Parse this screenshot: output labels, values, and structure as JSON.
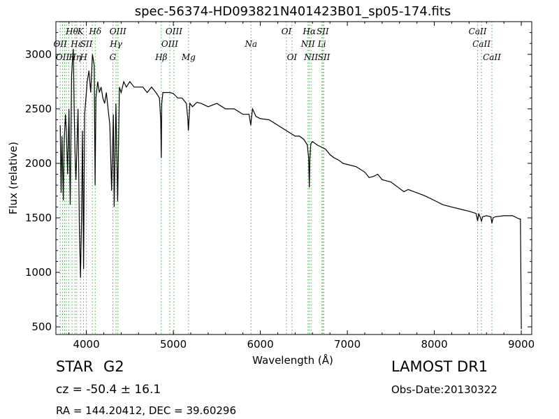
{
  "chart_data": {
    "type": "line",
    "title": "spec-56374-HD093821N401423B01_sp05-174.fits",
    "xlabel": "Wavelength (Å)",
    "ylabel": "Flux (relative)",
    "xlim": [
      3650,
      9120
    ],
    "ylim": [
      430,
      3300
    ],
    "xticks": [
      4000,
      5000,
      6000,
      7000,
      8000,
      9000
    ],
    "yticks": [
      500,
      1000,
      1500,
      2000,
      2500,
      3000
    ],
    "grid": false,
    "legend": "none",
    "series_color": "#000000",
    "line_color": "#44aa44",
    "x": [
      3700,
      3710,
      3720,
      3735,
      3745,
      3760,
      3770,
      3785,
      3800,
      3815,
      3830,
      3840,
      3850,
      3860,
      3870,
      3880,
      3890,
      3905,
      3920,
      3933,
      3945,
      3955,
      3968,
      3980,
      3995,
      4010,
      4030,
      4050,
      4070,
      4090,
      4101,
      4110,
      4130,
      4150,
      4170,
      4190,
      4210,
      4230,
      4250,
      4270,
      4290,
      4310,
      4320,
      4340,
      4360,
      4380,
      4400,
      4430,
      4460,
      4500,
      4550,
      4600,
      4650,
      4700,
      4750,
      4800,
      4840,
      4855,
      4861,
      4867,
      4880,
      4920,
      4960,
      5000,
      5050,
      5100,
      5150,
      5167,
      5172,
      5175,
      5183,
      5190,
      5220,
      5270,
      5320,
      5400,
      5500,
      5600,
      5700,
      5800,
      5870,
      5890,
      5896,
      5910,
      5950,
      6000,
      6100,
      6200,
      6300,
      6400,
      6450,
      6500,
      6540,
      6555,
      6563,
      6570,
      6580,
      6600,
      6650,
      6700,
      6750,
      6800,
      6850,
      6900,
      6950,
      7000,
      7100,
      7200,
      7250,
      7300,
      7350,
      7400,
      7500,
      7600,
      7650,
      7700,
      7800,
      7900,
      8000,
      8100,
      8200,
      8300,
      8400,
      8480,
      8498,
      8510,
      8530,
      8542,
      8555,
      8600,
      8650,
      8662,
      8675,
      8700,
      8800,
      8900,
      8950,
      8980,
      8990,
      9000
    ],
    "values": [
      2350,
      1730,
      2250,
      1660,
      2200,
      2450,
      2300,
      1900,
      2500,
      1620,
      2800,
      2950,
      3050,
      2500,
      2100,
      1850,
      2100,
      2500,
      1400,
      950,
      1500,
      2300,
      1030,
      2450,
      2600,
      2750,
      2850,
      2650,
      3000,
      2900,
      1800,
      2600,
      2750,
      2650,
      2700,
      2600,
      2550,
      2650,
      2500,
      2350,
      1750,
      2450,
      1600,
      2550,
      1650,
      2700,
      2650,
      2750,
      2700,
      2750,
      2700,
      2700,
      2700,
      2650,
      2700,
      2650,
      2600,
      2400,
      2050,
      2550,
      2650,
      2650,
      2650,
      2640,
      2600,
      2600,
      2550,
      2400,
      2300,
      2330,
      2450,
      2550,
      2520,
      2560,
      2550,
      2520,
      2550,
      2500,
      2500,
      2450,
      2450,
      2350,
      2400,
      2500,
      2430,
      2410,
      2400,
      2350,
      2300,
      2250,
      2250,
      2220,
      2170,
      2050,
      1780,
      2050,
      2180,
      2200,
      2170,
      2150,
      2130,
      2080,
      2050,
      2030,
      2000,
      1990,
      1970,
      1920,
      1870,
      1880,
      1900,
      1850,
      1830,
      1770,
      1740,
      1760,
      1730,
      1700,
      1660,
      1620,
      1600,
      1580,
      1560,
      1540,
      1470,
      1540,
      1500,
      1470,
      1510,
      1520,
      1510,
      1450,
      1500,
      1510,
      1520,
      1520,
      1500,
      1490,
      1490,
      480
    ],
    "lines": [
      {
        "x": 3700,
        "label": "OII",
        "row": 2
      },
      {
        "x": 3727,
        "label": "OII",
        "row": 3
      },
      {
        "x": 3750,
        "label": "",
        "row": 0
      },
      {
        "x": 3771,
        "label": "",
        "row": 0
      },
      {
        "x": 3798,
        "label": "",
        "row": 0
      },
      {
        "x": 3835,
        "label": "Hθ",
        "row": 1
      },
      {
        "x": 3869,
        "label": "Hη",
        "row": 3
      },
      {
        "x": 3889,
        "label": "Hε",
        "row": 2
      },
      {
        "x": 3933,
        "label": "K",
        "row": 1
      },
      {
        "x": 3968,
        "label": "H",
        "row": 3
      },
      {
        "x": 4000,
        "label": "SII",
        "row": 2
      },
      {
        "x": 4069,
        "label": "",
        "row": 0
      },
      {
        "x": 4102,
        "label": "Hδ",
        "row": 1
      },
      {
        "x": 4304,
        "label": "G",
        "row": 3
      },
      {
        "x": 4341,
        "label": "Hγ",
        "row": 2
      },
      {
        "x": 4363,
        "label": "OIII",
        "row": 1
      },
      {
        "x": 4861,
        "label": "Hβ",
        "row": 3
      },
      {
        "x": 4959,
        "label": "OIII",
        "row": 2
      },
      {
        "x": 5007,
        "label": "OIII",
        "row": 1
      },
      {
        "x": 5175,
        "label": "Mg",
        "row": 3
      },
      {
        "x": 5893,
        "label": "Na",
        "row": 2
      },
      {
        "x": 6300,
        "label": "OI",
        "row": 1
      },
      {
        "x": 6364,
        "label": "OI",
        "row": 3
      },
      {
        "x": 6548,
        "label": "NII",
        "row": 2
      },
      {
        "x": 6563,
        "label": "Hα",
        "row": 1
      },
      {
        "x": 6583,
        "label": "NII",
        "row": 3
      },
      {
        "x": 6708,
        "label": "Li",
        "row": 2
      },
      {
        "x": 6717,
        "label": "SII",
        "row": 1
      },
      {
        "x": 6731,
        "label": "SII",
        "row": 3
      },
      {
        "x": 8498,
        "label": "CaII",
        "row": 1
      },
      {
        "x": 8542,
        "label": "CaII",
        "row": 2
      },
      {
        "x": 8662,
        "label": "CaII",
        "row": 3
      }
    ]
  },
  "info": {
    "object_class": "STAR",
    "object_subclass": "G2",
    "cz": "cz = -50.4 ± 16.1",
    "radec": "RA = 144.20412, DEC = 39.60296",
    "survey": "LAMOST DR1",
    "obs_date": "Obs-Date:20130322"
  }
}
